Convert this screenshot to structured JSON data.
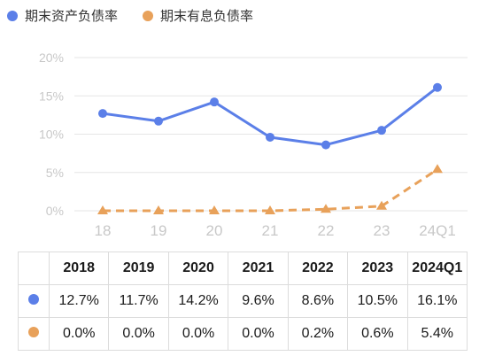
{
  "legend": {
    "series1": "期末资产负债率",
    "series2": "期末有息负债率"
  },
  "colors": {
    "series1": "#5b7fe8",
    "series2": "#e8a15a"
  },
  "chart_data": {
    "type": "line",
    "x": [
      "18",
      "19",
      "20",
      "21",
      "22",
      "23",
      "24Q1"
    ],
    "series": [
      {
        "name": "期末资产负债率",
        "values": [
          12.7,
          11.7,
          14.2,
          9.6,
          8.6,
          10.5,
          16.1
        ],
        "style": "solid",
        "marker": "circle"
      },
      {
        "name": "期末有息负债率",
        "values": [
          0.0,
          0.0,
          0.0,
          0.0,
          0.2,
          0.6,
          5.4
        ],
        "style": "dashed",
        "marker": "triangle"
      }
    ],
    "ylim": [
      0,
      20
    ],
    "yticks": [
      "0%",
      "5%",
      "10%",
      "15%",
      "20%"
    ],
    "ytick_values": [
      0,
      5,
      10,
      15,
      20
    ],
    "grid": true
  },
  "table": {
    "headers": [
      "2018",
      "2019",
      "2020",
      "2021",
      "2022",
      "2023",
      "2024Q1"
    ],
    "rows": [
      [
        "12.7%",
        "11.7%",
        "14.2%",
        "9.6%",
        "8.6%",
        "10.5%",
        "16.1%"
      ],
      [
        "0.0%",
        "0.0%",
        "0.0%",
        "0.0%",
        "0.2%",
        "0.6%",
        "5.4%"
      ]
    ]
  }
}
